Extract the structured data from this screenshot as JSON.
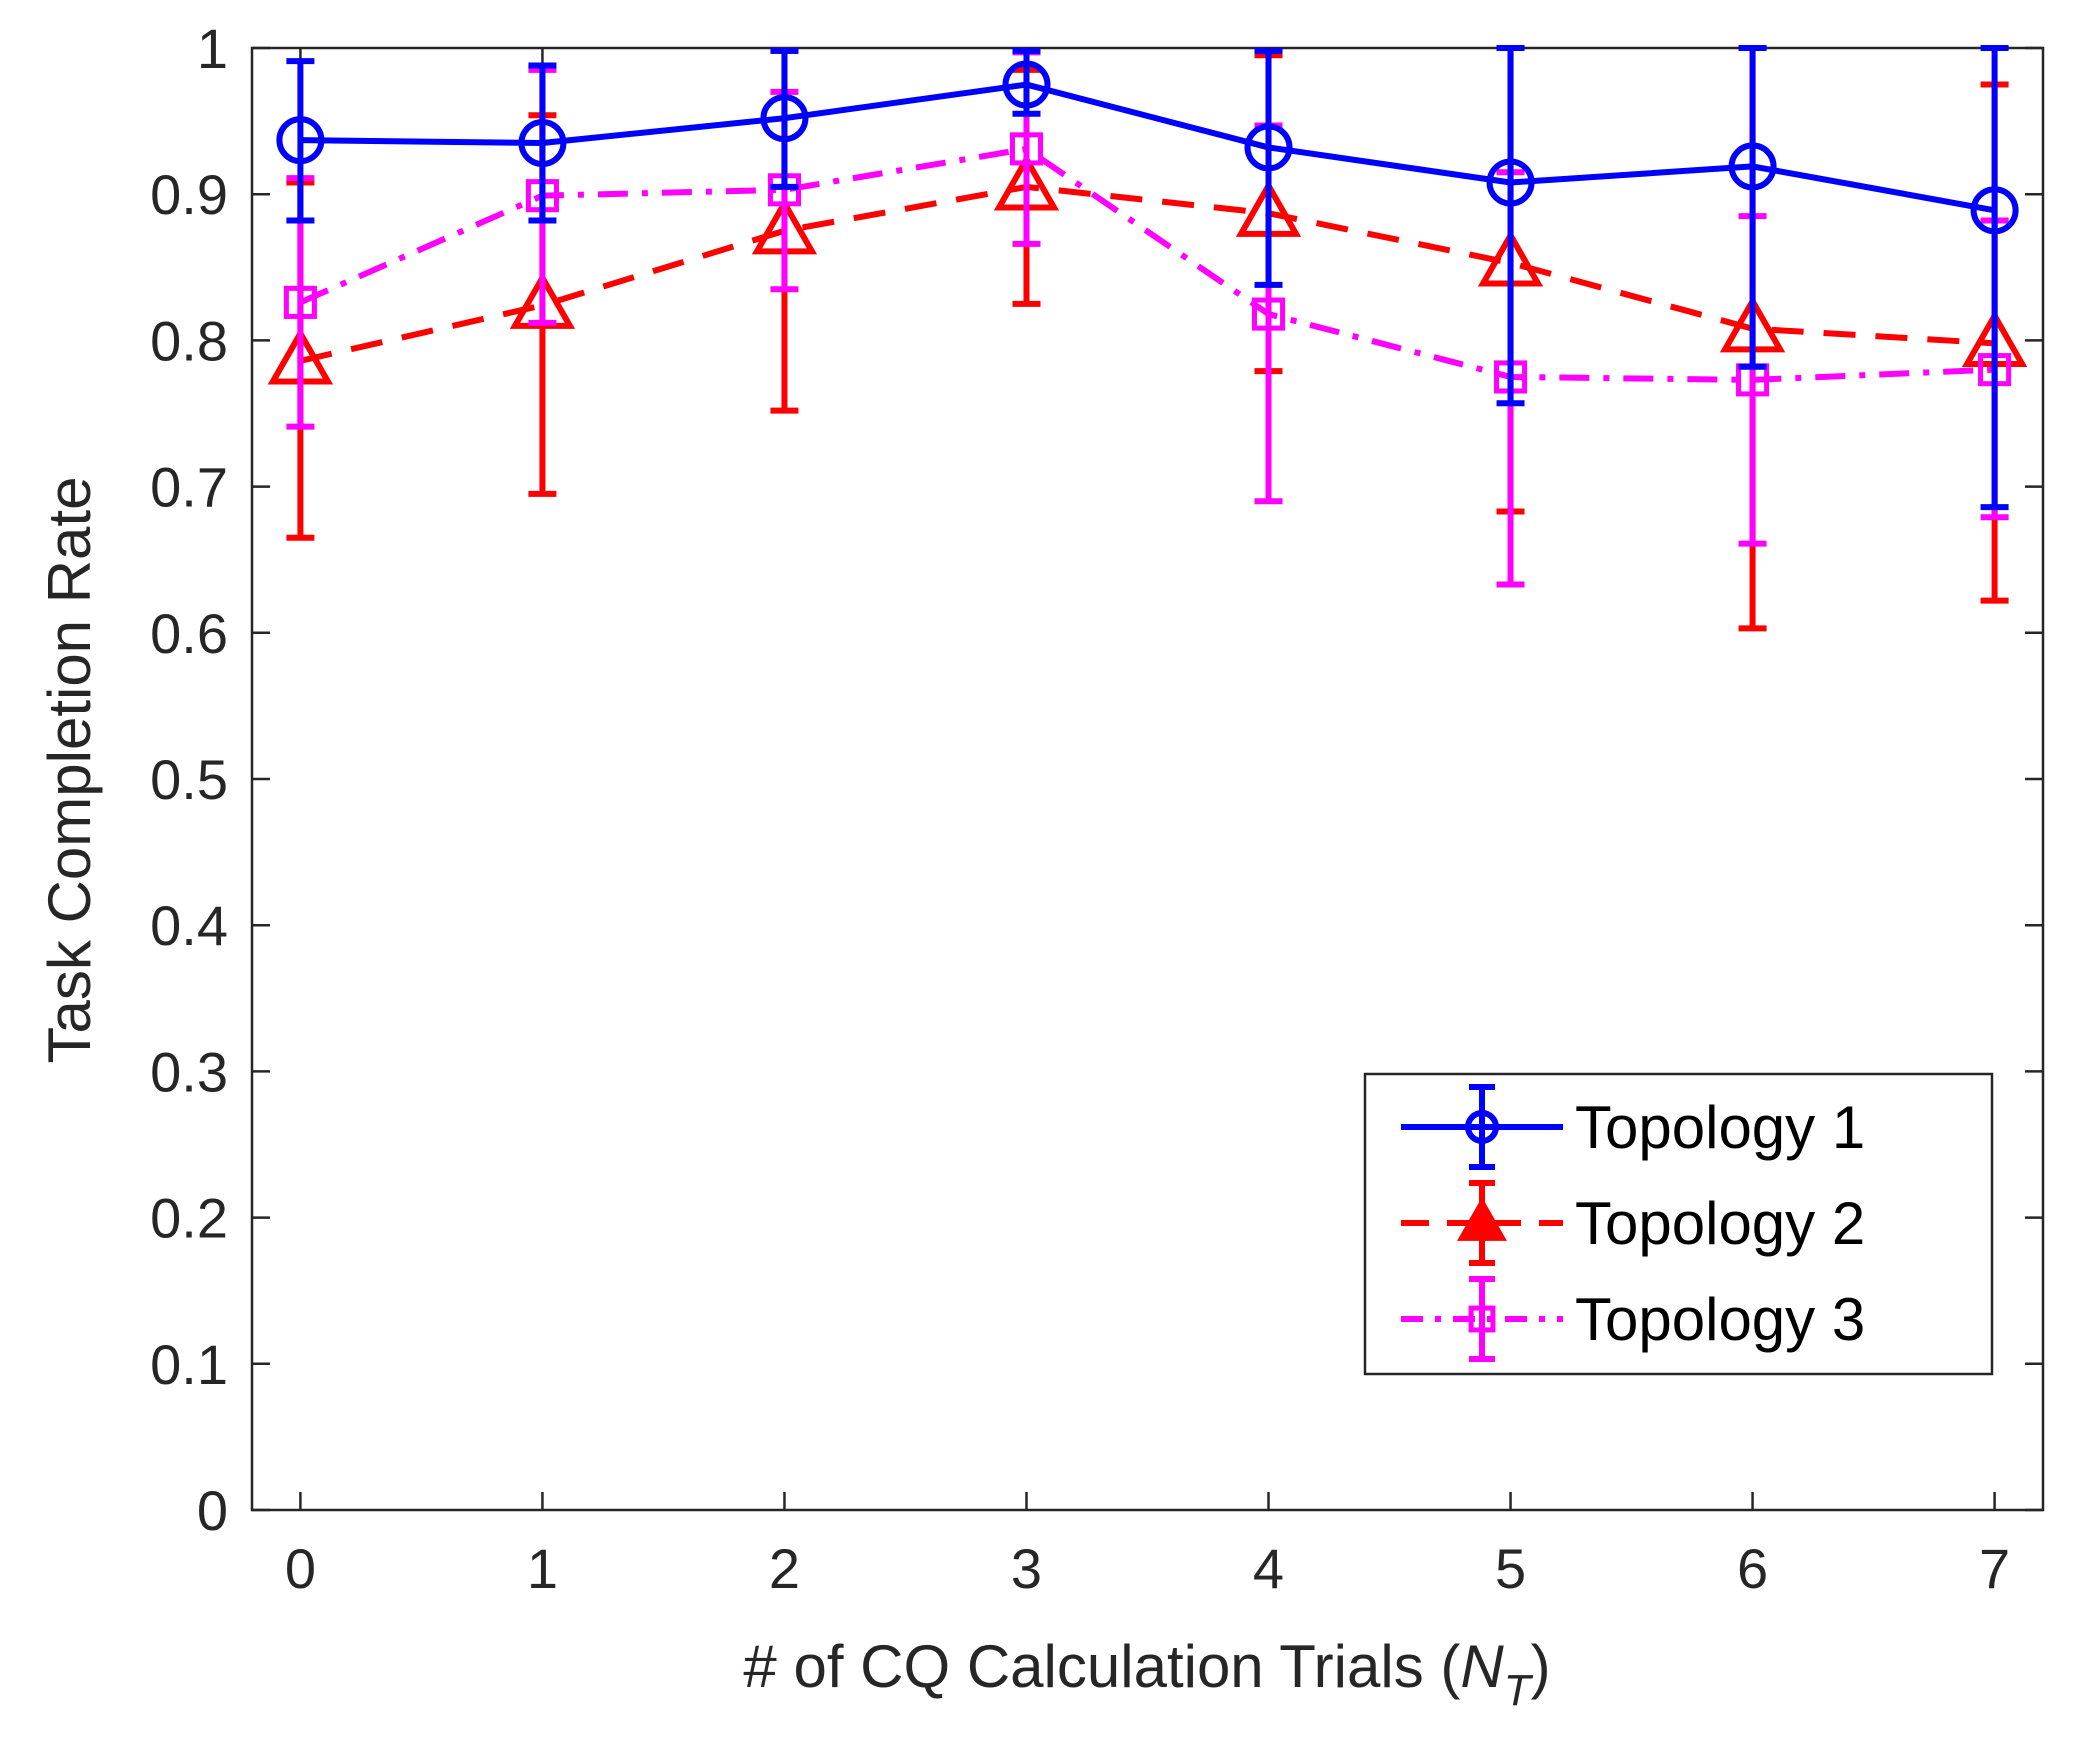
{
  "chart_data": {
    "type": "line",
    "title": "",
    "xlabel": "# of CQ Calculation Trials (",
    "xlabel_var": "N",
    "xlabel_sub": "T",
    "xlabel_close": ")",
    "ylabel": "Task Completion Rate",
    "xlim": [
      -0.2,
      7.2
    ],
    "ylim": [
      0,
      1
    ],
    "xticks": [
      0,
      1,
      2,
      3,
      4,
      5,
      6,
      7
    ],
    "xtick_labels": [
      "0",
      "1",
      "2",
      "3",
      "4",
      "5",
      "6",
      "7"
    ],
    "yticks": [
      0,
      0.1,
      0.2,
      0.3,
      0.4,
      0.5,
      0.6,
      0.7,
      0.8,
      0.9,
      1
    ],
    "ytick_labels": [
      "0",
      "0.1",
      "0.2",
      "0.3",
      "0.4",
      "0.5",
      "0.6",
      "0.7",
      "0.8",
      "0.9",
      "1"
    ],
    "grid": false,
    "legend_position": "bottom-right",
    "x": [
      0,
      1,
      2,
      3,
      4,
      5,
      6,
      7
    ],
    "series": [
      {
        "name": "Topology 1",
        "color": "#0000ff",
        "line_style": "solid",
        "marker": "circle",
        "values": [
          0.937,
          0.935,
          0.952,
          0.975,
          0.932,
          0.908,
          0.919,
          0.889
        ],
        "err_low": [
          0.882,
          0.882,
          0.905,
          0.955,
          0.838,
          0.757,
          0.782,
          0.686
        ],
        "err_high": [
          0.991,
          0.988,
          0.998,
          0.998,
          0.998,
          1.0,
          1.0,
          1.0
        ]
      },
      {
        "name": "Topology 2",
        "color": "#ff0000",
        "line_style": "dashed",
        "marker": "triangle",
        "values": [
          0.786,
          0.824,
          0.875,
          0.905,
          0.887,
          0.853,
          0.808,
          0.798
        ],
        "err_low": [
          0.665,
          0.695,
          0.752,
          0.825,
          0.779,
          0.683,
          0.603,
          0.622
        ],
        "err_high": [
          0.908,
          0.954,
          0.998,
          0.985,
          0.995,
          1.0,
          1.0,
          0.975
        ]
      },
      {
        "name": "Topology 3",
        "color": "#ff00ff",
        "line_style": "dashdot",
        "marker": "square",
        "values": [
          0.826,
          0.899,
          0.903,
          0.931,
          0.818,
          0.775,
          0.773,
          0.78
        ],
        "err_low": [
          0.741,
          0.812,
          0.835,
          0.866,
          0.69,
          0.633,
          0.661,
          0.679
        ],
        "err_high": [
          0.911,
          0.985,
          0.97,
          0.997,
          0.947,
          0.915,
          0.885,
          0.882
        ]
      }
    ]
  }
}
